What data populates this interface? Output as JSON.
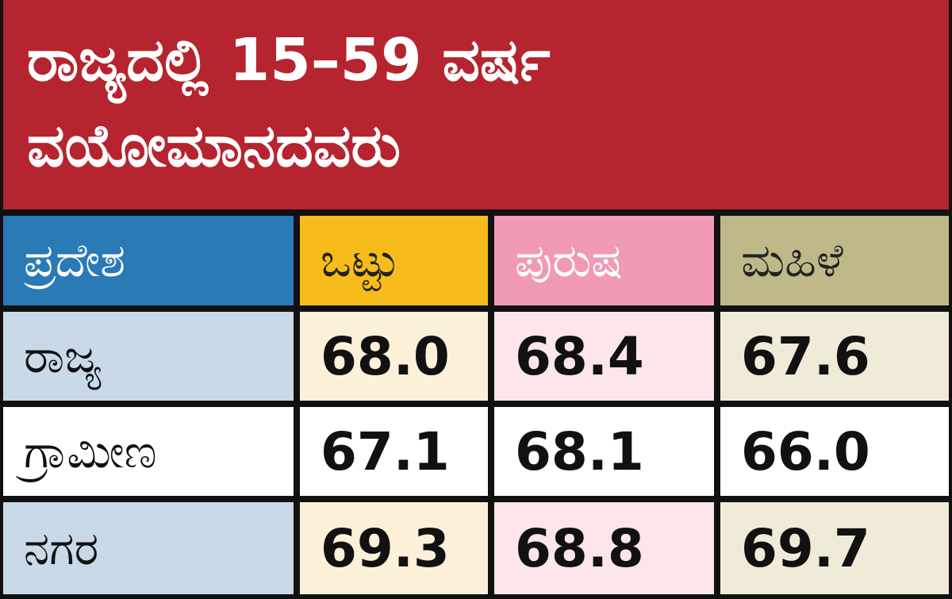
{
  "header": {
    "title_lines": [
      "ರಾಜ್ಯದಲ್ಲಿ 15–59 ವರ್ಷ",
      "ವಯೋಮಾನದವರು"
    ]
  },
  "table": {
    "columns": [
      "ಪ್ರದೇಶ",
      "ಒಟ್ಟು",
      "ಪುರುಷ",
      "ಮಹಿಳೆ"
    ],
    "rows": [
      [
        "ರಾಜ್ಯ",
        "68.0",
        "68.4",
        "67.6"
      ],
      [
        "ಗ್ರಾಮೀಣ",
        "67.1",
        "68.1",
        "66.0"
      ],
      [
        "ನಗರ",
        "69.3",
        "68.8",
        "69.7"
      ]
    ]
  }
}
